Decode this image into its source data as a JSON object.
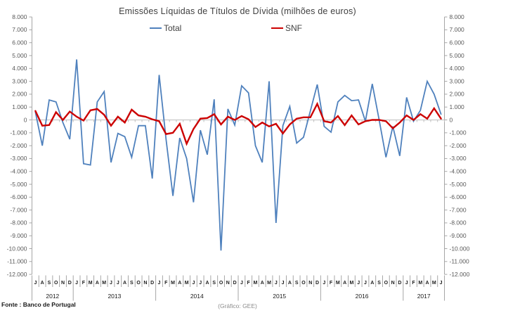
{
  "title": "Emissões Líquidas de Títulos de Dívida (milhões de euros)",
  "legend": {
    "total_label": "Total",
    "snf_label": "SNF"
  },
  "footer": {
    "source": "Fonte : Banco de Portugal",
    "credit": "(Gráfico: GEE)"
  },
  "colors": {
    "total": "#4f81bd",
    "snf": "#cc0000",
    "axis": "#a6a6a6",
    "zero_line": "#bfbfbf",
    "tick_label": "#595959",
    "cat_label": "#1a1a1a"
  },
  "chart_data": {
    "type": "line",
    "title": "Emissões Líquidas de Títulos de Dívida (milhões de euros)",
    "ylim": [
      -12000,
      8000
    ],
    "y_tick_step": 1000,
    "y_labels": [
      "8.000",
      "7.000",
      "6.000",
      "5.000",
      "4.000",
      "3.000",
      "2.000",
      "1.000",
      "0",
      "-1.000",
      "-2.000",
      "-3.000",
      "-4.000",
      "-5.000",
      "-6.000",
      "-7.000",
      "-8.000",
      "-9.000",
      "-10.000",
      "-11.000",
      "-12.000"
    ],
    "grid": "zero-line-only",
    "legend_position": "top",
    "month_letters": [
      "J",
      "A",
      "S",
      "O",
      "N",
      "D",
      "J",
      "F",
      "M",
      "A",
      "M",
      "J",
      "J",
      "A",
      "S",
      "O",
      "N",
      "D",
      "J",
      "F",
      "M",
      "A",
      "M",
      "J",
      "J",
      "A",
      "S",
      "O",
      "N",
      "D",
      "J",
      "F",
      "M",
      "A",
      "M",
      "J",
      "J",
      "A",
      "S",
      "O",
      "N",
      "D",
      "J",
      "F",
      "M",
      "A",
      "M",
      "J",
      "J",
      "A",
      "S",
      "O",
      "N",
      "D",
      "J",
      "F",
      "M",
      "A",
      "M",
      "J"
    ],
    "year_groups": [
      {
        "label": "2012",
        "months": 6
      },
      {
        "label": "2013",
        "months": 12
      },
      {
        "label": "2014",
        "months": 12
      },
      {
        "label": "2015",
        "months": 12
      },
      {
        "label": "2016",
        "months": 12
      },
      {
        "label": "2017",
        "months": 6
      }
    ],
    "series": [
      {
        "name": "Total",
        "color": "#4f81bd",
        "values": [
          600,
          -2000,
          1550,
          1400,
          -200,
          -1500,
          4700,
          -3400,
          -3500,
          1400,
          2200,
          -3300,
          -1050,
          -1300,
          -2900,
          -450,
          -450,
          -4550,
          3500,
          -1500,
          -5900,
          -1400,
          -3000,
          -6400,
          -800,
          -2700,
          1600,
          -10150,
          850,
          -400,
          2650,
          2100,
          -2000,
          -3300,
          3000,
          -8000,
          -450,
          1050,
          -1800,
          -1350,
          700,
          2750,
          -500,
          -950,
          1400,
          1900,
          1500,
          1550,
          -100,
          2800,
          0,
          -2900,
          -500,
          -2800,
          1750,
          -100,
          750,
          3000,
          2000,
          450
        ]
      },
      {
        "name": "SNF",
        "color": "#cc0000",
        "values": [
          700,
          -450,
          -400,
          600,
          0,
          650,
          250,
          -50,
          750,
          850,
          400,
          -450,
          250,
          -200,
          800,
          350,
          250,
          50,
          -100,
          -1100,
          -1000,
          -300,
          -1850,
          -700,
          100,
          150,
          450,
          -350,
          250,
          0,
          300,
          50,
          -550,
          -200,
          -500,
          -300,
          -1050,
          -350,
          100,
          200,
          200,
          1250,
          -100,
          -200,
          300,
          -400,
          350,
          -350,
          -100,
          0,
          0,
          -100,
          -650,
          -200,
          350,
          0,
          450,
          100,
          900,
          100
        ]
      }
    ]
  }
}
